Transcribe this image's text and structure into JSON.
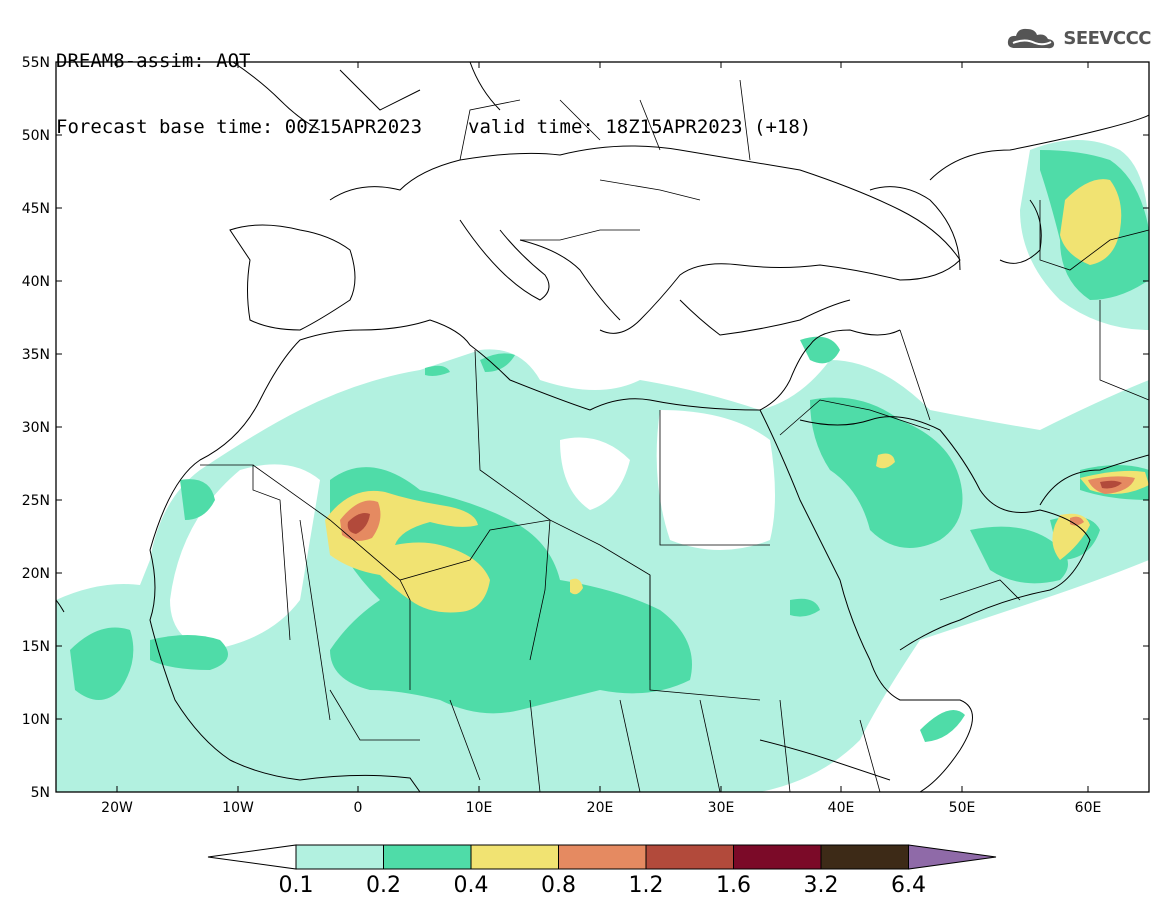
{
  "title": {
    "line1": "DREAM8-assim: AOT",
    "base_time": "Forecast base time: 00Z15APR2023",
    "valid_time": "valid time: 18Z15APR2023 (+18)"
  },
  "logo": {
    "text": "SEEVCCC",
    "icon": "cloud-icon"
  },
  "map": {
    "lat_labels": [
      "55N",
      "50N",
      "45N",
      "40N",
      "35N",
      "30N",
      "25N",
      "20N",
      "15N",
      "10N",
      "5N"
    ],
    "lon_labels": [
      "20W",
      "10W",
      "0",
      "10E",
      "20E",
      "30E",
      "40E",
      "50E",
      "60E"
    ],
    "colors": {
      "c01": "#b2f1e0",
      "c02": "#4fdca8",
      "c04": "#f1e372",
      "c08": "#e58a61",
      "c12": "#b24a3b",
      "c16": "#7b0a28",
      "c32": "#3d2a17",
      "c64": "#8f6aa8"
    }
  },
  "colorbar": {
    "labels": [
      "0.1",
      "0.2",
      "0.4",
      "0.8",
      "1.2",
      "1.6",
      "3.2",
      "6.4"
    ],
    "colors": [
      "#b2f1e0",
      "#4fdca8",
      "#f1e372",
      "#e58a61",
      "#b24a3b",
      "#7b0a28",
      "#3d2a17"
    ],
    "over_color": "#8f6aa8",
    "under_color": "#ffffff"
  }
}
